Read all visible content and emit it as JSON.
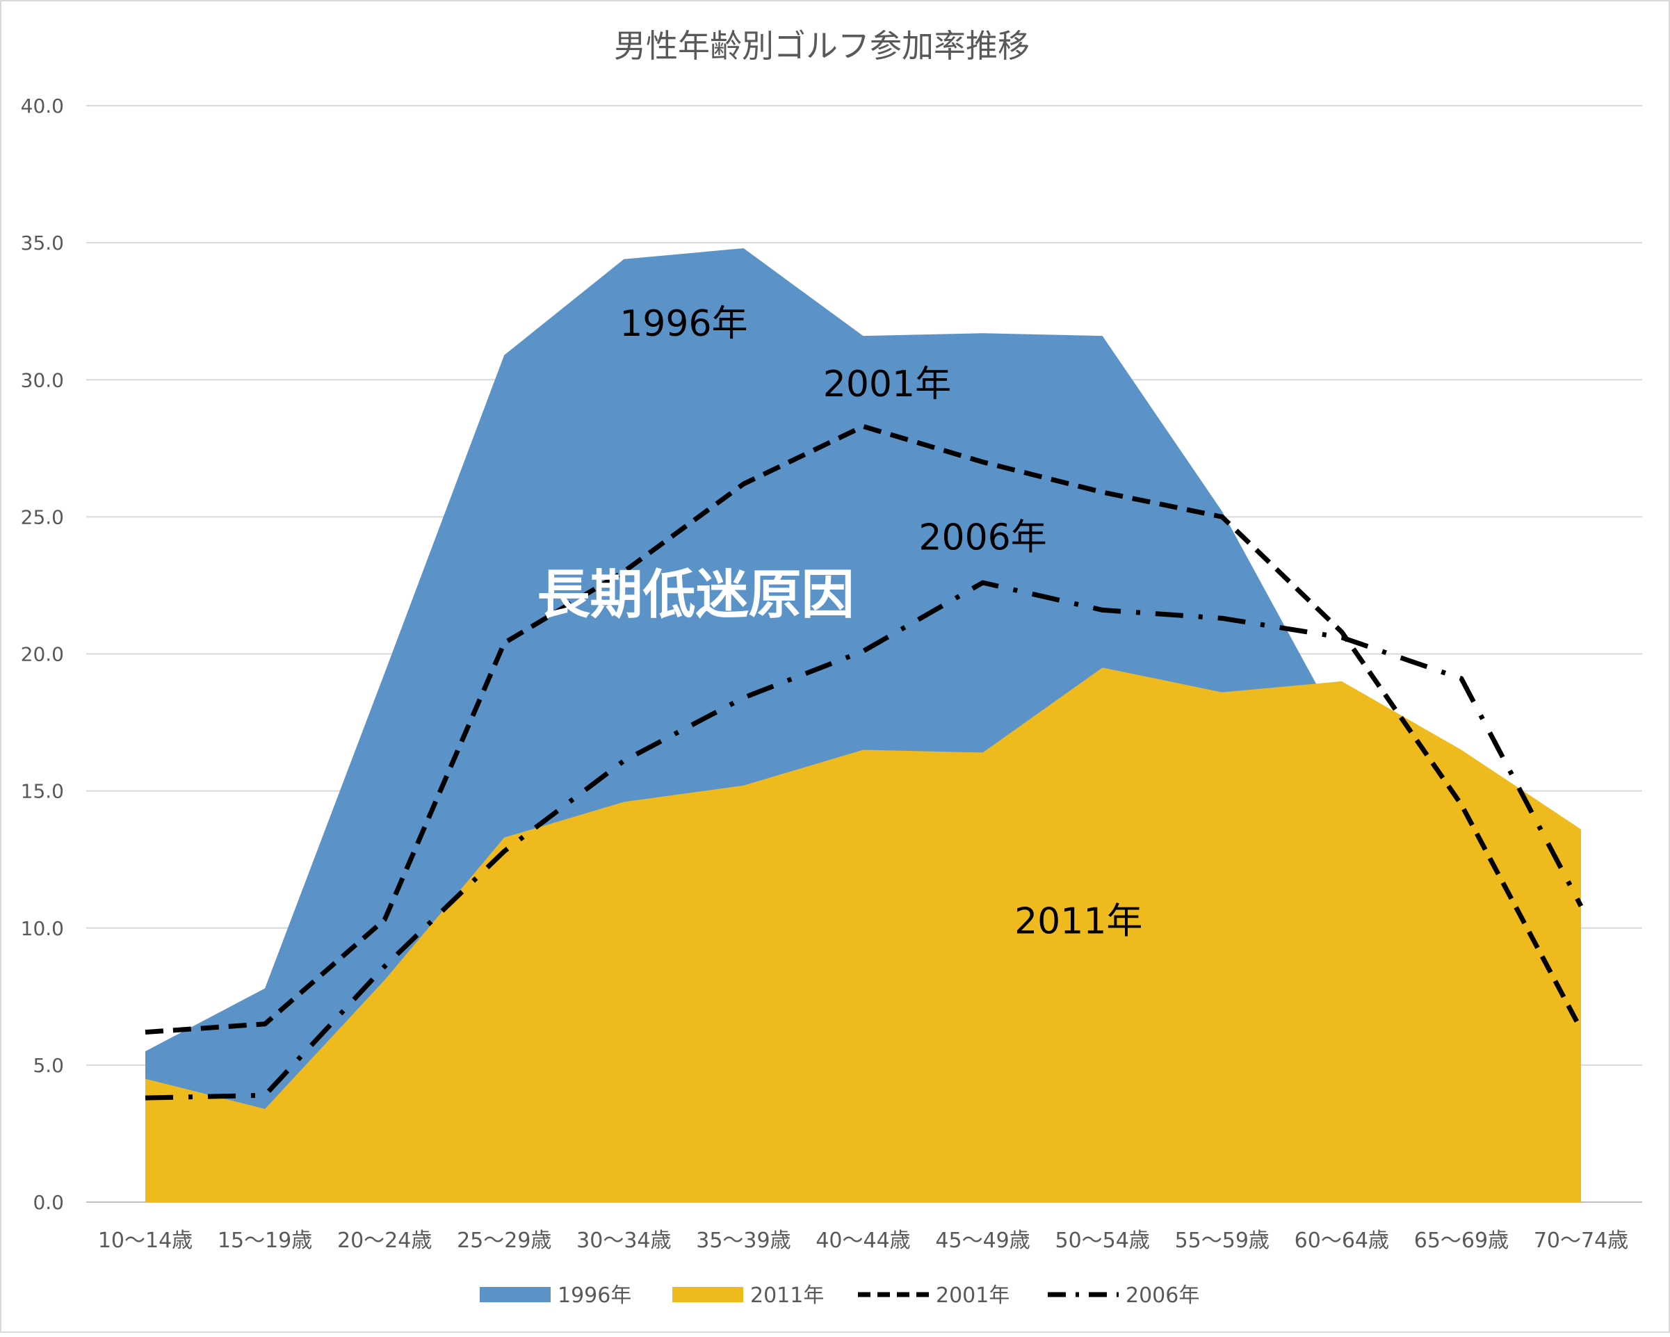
{
  "chart_data": {
    "type": "area",
    "title": "男性年齢別ゴルフ参加率推移",
    "categories": [
      "10～14歳",
      "15～19歳",
      "20～24歳",
      "25～29歳",
      "30～34歳",
      "35～39歳",
      "40～44歳",
      "45～49歳",
      "50～54歳",
      "55～59歳",
      "60～64歳",
      "65～69歳",
      "70～74歳"
    ],
    "ylim": [
      0,
      40
    ],
    "yticks": [
      "0.0",
      "5.0",
      "10.0",
      "15.0",
      "20.0",
      "25.0",
      "30.0",
      "35.0",
      "40.0"
    ],
    "grid": true,
    "legend_position": "bottom",
    "series": [
      {
        "name": "1996年",
        "kind": "area",
        "color": "#5b93c9",
        "values": [
          5.5,
          7.8,
          19.3,
          30.9,
          34.4,
          34.8,
          31.6,
          31.7,
          31.6,
          25.2,
          17.2,
          null,
          null
        ]
      },
      {
        "name": "2011年",
        "kind": "area",
        "color": "#efba1d",
        "values": [
          4.5,
          3.4,
          8.1,
          13.3,
          14.6,
          15.2,
          16.5,
          16.4,
          19.5,
          18.6,
          19.0,
          16.5,
          13.6
        ]
      },
      {
        "name": "2001年",
        "kind": "line-dash",
        "color": "#000000",
        "values": [
          6.2,
          6.5,
          10.3,
          20.4,
          23.0,
          26.2,
          28.3,
          27.0,
          25.9,
          25.0,
          20.8,
          14.5,
          6.3
        ]
      },
      {
        "name": "2006年",
        "kind": "line-dashdot",
        "color": "#000000",
        "values": [
          3.8,
          3.9,
          8.6,
          12.8,
          16.1,
          18.4,
          20.1,
          22.6,
          21.6,
          21.3,
          20.6,
          19.1,
          10.8
        ]
      }
    ],
    "annotations": [
      {
        "id": "label-1996",
        "text": "1996年",
        "x": 4.5,
        "y": 31.6,
        "color": "#000000",
        "size": "medium"
      },
      {
        "id": "label-2001",
        "text": "2001年",
        "x": 6.2,
        "y": 29.4,
        "color": "#000000",
        "size": "medium"
      },
      {
        "id": "label-2006",
        "text": "2006年",
        "x": 7.0,
        "y": 23.8,
        "color": "#000000",
        "size": "medium"
      },
      {
        "id": "label-cause",
        "text": "長期低迷原因",
        "x": 4.6,
        "y": 21.5,
        "color": "#ffffff",
        "size": "large"
      },
      {
        "id": "label-2011",
        "text": "2011年",
        "x": 7.8,
        "y": 9.8,
        "color": "#000000",
        "size": "medium"
      }
    ]
  }
}
